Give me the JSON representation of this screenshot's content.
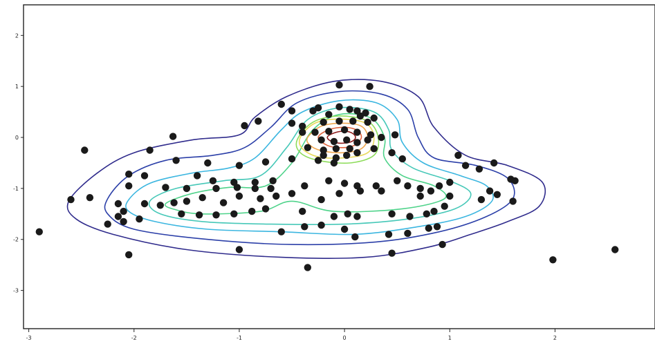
{
  "chart_data": {
    "type": "scatter",
    "title": "",
    "xlabel": "",
    "ylabel": "",
    "xlim": [
      -3.05,
      2.95
    ],
    "ylim": [
      -3.75,
      2.6
    ],
    "grid": false,
    "legend": "none",
    "x_ticks": [
      {
        "value": -3,
        "label": "-3"
      },
      {
        "value": -2,
        "label": "-2"
      },
      {
        "value": -1,
        "label": "-1"
      },
      {
        "value": 0,
        "label": "0"
      },
      {
        "value": 1,
        "label": "1"
      },
      {
        "value": 2,
        "label": "2"
      }
    ],
    "y_ticks": [
      {
        "value": 2,
        "label": "2"
      },
      {
        "value": 1,
        "label": "1"
      },
      {
        "value": 0,
        "label": "0"
      },
      {
        "value": -1,
        "label": "-1"
      },
      {
        "value": -2,
        "label": "-2"
      },
      {
        "value": -3,
        "label": "-3"
      }
    ],
    "point_color": "#1a1a1a",
    "points": [
      [
        -0.05,
        1.03
      ],
      [
        0.24,
        1.0
      ],
      [
        -0.6,
        0.65
      ],
      [
        -0.25,
        0.58
      ],
      [
        -0.5,
        0.52
      ],
      [
        -0.3,
        0.52
      ],
      [
        -0.05,
        0.6
      ],
      [
        0.05,
        0.55
      ],
      [
        0.12,
        0.52
      ],
      [
        0.2,
        0.48
      ],
      [
        0.28,
        0.38
      ],
      [
        0.15,
        0.42
      ],
      [
        -0.15,
        0.45
      ],
      [
        -0.82,
        0.32
      ],
      [
        -0.95,
        0.23
      ],
      [
        -0.5,
        0.28
      ],
      [
        -0.4,
        0.22
      ],
      [
        -0.2,
        0.3
      ],
      [
        -0.05,
        0.32
      ],
      [
        0.08,
        0.32
      ],
      [
        0.22,
        0.3
      ],
      [
        -1.63,
        0.02
      ],
      [
        -0.15,
        0.12
      ],
      [
        0.0,
        0.15
      ],
      [
        0.12,
        0.1
      ],
      [
        0.25,
        0.05
      ],
      [
        0.35,
        0.0
      ],
      [
        0.48,
        0.05
      ],
      [
        -0.4,
        0.1
      ],
      [
        -0.28,
        0.1
      ],
      [
        -0.22,
        -0.05
      ],
      [
        -0.1,
        -0.08
      ],
      [
        0.02,
        -0.05
      ],
      [
        0.12,
        -0.1
      ],
      [
        0.22,
        -0.05
      ],
      [
        0.28,
        -0.22
      ],
      [
        -0.35,
        -0.2
      ],
      [
        -0.2,
        -0.25
      ],
      [
        -0.08,
        -0.22
      ],
      [
        0.05,
        -0.22
      ],
      [
        0.45,
        -0.3
      ],
      [
        -0.2,
        -0.35
      ],
      [
        -0.08,
        -0.4
      ],
      [
        0.02,
        -0.35
      ],
      [
        0.12,
        -0.3
      ],
      [
        0.55,
        -0.42
      ],
      [
        -0.5,
        -0.42
      ],
      [
        -0.25,
        -0.45
      ],
      [
        -0.1,
        -0.5
      ],
      [
        1.08,
        -0.35
      ],
      [
        1.15,
        -0.55
      ],
      [
        -0.75,
        -0.48
      ],
      [
        -1.0,
        -0.55
      ],
      [
        -1.3,
        -0.5
      ],
      [
        -1.6,
        -0.45
      ],
      [
        -1.85,
        -0.25
      ],
      [
        -2.47,
        -0.25
      ],
      [
        1.42,
        -0.5
      ],
      [
        1.28,
        -0.62
      ],
      [
        -1.4,
        -0.75
      ],
      [
        -1.9,
        -0.75
      ],
      [
        -1.25,
        -0.85
      ],
      [
        -1.05,
        -0.88
      ],
      [
        -0.85,
        -0.88
      ],
      [
        -0.68,
        -0.85
      ],
      [
        -0.7,
        -1.0
      ],
      [
        -0.85,
        -1.0
      ],
      [
        -1.02,
        -0.98
      ],
      [
        -1.22,
        -1.0
      ],
      [
        -1.5,
        -1.0
      ],
      [
        -1.7,
        -0.98
      ],
      [
        -0.38,
        -0.95
      ],
      [
        -0.15,
        -0.85
      ],
      [
        0.0,
        -0.9
      ],
      [
        0.12,
        -0.95
      ],
      [
        0.3,
        -0.95
      ],
      [
        0.5,
        -0.85
      ],
      [
        0.6,
        -0.95
      ],
      [
        0.72,
        -1.0
      ],
      [
        0.82,
        -1.05
      ],
      [
        0.9,
        -0.95
      ],
      [
        1.0,
        -0.88
      ],
      [
        1.58,
        -0.82
      ],
      [
        1.62,
        -0.85
      ],
      [
        -2.05,
        -0.72
      ],
      [
        -2.05,
        -0.95
      ],
      [
        -1.0,
        -1.15
      ],
      [
        -0.8,
        -1.2
      ],
      [
        -0.65,
        -1.15
      ],
      [
        -1.35,
        -1.18
      ],
      [
        -1.15,
        -1.28
      ],
      [
        -1.5,
        -1.25
      ],
      [
        -1.62,
        -1.28
      ],
      [
        -1.75,
        -1.33
      ],
      [
        -2.15,
        -1.3
      ],
      [
        -2.6,
        -1.22
      ],
      [
        -2.42,
        -1.18
      ],
      [
        -1.9,
        -1.3
      ],
      [
        -0.5,
        -1.1
      ],
      [
        -0.05,
        -1.1
      ],
      [
        0.15,
        -1.05
      ],
      [
        0.35,
        -1.05
      ],
      [
        0.72,
        -1.15
      ],
      [
        1.0,
        -1.15
      ],
      [
        1.3,
        -1.22
      ],
      [
        1.38,
        -1.05
      ],
      [
        1.45,
        -1.12
      ],
      [
        1.6,
        -1.25
      ],
      [
        -0.75,
        -1.4
      ],
      [
        -0.88,
        -1.45
      ],
      [
        -1.05,
        -1.5
      ],
      [
        -1.22,
        -1.52
      ],
      [
        -1.38,
        -1.52
      ],
      [
        -1.55,
        -1.5
      ],
      [
        -1.95,
        -1.6
      ],
      [
        -2.1,
        -1.65
      ],
      [
        -2.15,
        -1.55
      ],
      [
        -2.1,
        -1.45
      ],
      [
        -0.4,
        -1.45
      ],
      [
        -0.22,
        -1.22
      ],
      [
        -0.1,
        -1.55
      ],
      [
        0.03,
        -1.5
      ],
      [
        0.12,
        -1.55
      ],
      [
        0.45,
        -1.5
      ],
      [
        0.62,
        -1.55
      ],
      [
        0.78,
        -1.5
      ],
      [
        0.85,
        -1.45
      ],
      [
        0.95,
        -1.35
      ],
      [
        -0.22,
        -1.72
      ],
      [
        -0.38,
        -1.75
      ],
      [
        0.0,
        -1.8
      ],
      [
        0.1,
        -1.95
      ],
      [
        0.42,
        -1.9
      ],
      [
        0.6,
        -1.88
      ],
      [
        0.8,
        -1.78
      ],
      [
        0.88,
        -1.75
      ],
      [
        -0.6,
        -1.85
      ],
      [
        -2.25,
        -1.7
      ],
      [
        -2.9,
        -1.85
      ],
      [
        -1.0,
        -2.2
      ],
      [
        0.93,
        -2.1
      ],
      [
        -2.05,
        -2.3
      ],
      [
        0.45,
        -2.27
      ],
      [
        -0.35,
        -2.55
      ],
      [
        1.98,
        -2.4
      ],
      [
        2.57,
        -2.2
      ]
    ],
    "contours": [
      {
        "level": 1,
        "color": "#2f2b8c",
        "path": [
          [
            -2.62,
            -1.25
          ],
          [
            -2.35,
            -0.7
          ],
          [
            -2.0,
            -0.3
          ],
          [
            -1.45,
            -0.05
          ],
          [
            -1.0,
            0.05
          ],
          [
            -0.85,
            0.4
          ],
          [
            -0.55,
            0.8
          ],
          [
            -0.1,
            1.1
          ],
          [
            0.35,
            1.1
          ],
          [
            0.7,
            0.8
          ],
          [
            0.85,
            0.2
          ],
          [
            1.15,
            -0.35
          ],
          [
            1.55,
            -0.55
          ],
          [
            1.88,
            -0.88
          ],
          [
            1.85,
            -1.35
          ],
          [
            1.55,
            -1.65
          ],
          [
            1.2,
            -1.9
          ],
          [
            0.8,
            -2.15
          ],
          [
            0.2,
            -2.35
          ],
          [
            -0.6,
            -2.35
          ],
          [
            -1.5,
            -2.2
          ],
          [
            -2.2,
            -1.9
          ],
          [
            -2.55,
            -1.6
          ]
        ]
      },
      {
        "level": 2,
        "color": "#2b3fa8",
        "path": [
          [
            -2.25,
            -1.2
          ],
          [
            -2.05,
            -0.75
          ],
          [
            -1.7,
            -0.45
          ],
          [
            -1.25,
            -0.35
          ],
          [
            -0.95,
            -0.2
          ],
          [
            -0.7,
            0.2
          ],
          [
            -0.45,
            0.68
          ],
          [
            -0.05,
            0.9
          ],
          [
            0.35,
            0.85
          ],
          [
            0.6,
            0.55
          ],
          [
            0.7,
            0.0
          ],
          [
            0.85,
            -0.4
          ],
          [
            1.25,
            -0.55
          ],
          [
            1.55,
            -0.8
          ],
          [
            1.6,
            -1.2
          ],
          [
            1.35,
            -1.55
          ],
          [
            0.9,
            -1.85
          ],
          [
            0.3,
            -2.05
          ],
          [
            -0.5,
            -2.1
          ],
          [
            -1.3,
            -2.0
          ],
          [
            -2.0,
            -1.8
          ],
          [
            -2.25,
            -1.5
          ]
        ]
      },
      {
        "level": 3,
        "color": "#3bb6e0",
        "path": [
          [
            -2.05,
            -1.22
          ],
          [
            -1.85,
            -0.9
          ],
          [
            -1.45,
            -0.7
          ],
          [
            -1.1,
            -0.6
          ],
          [
            -0.85,
            -0.4
          ],
          [
            -0.6,
            0.15
          ],
          [
            -0.4,
            0.5
          ],
          [
            -0.05,
            0.72
          ],
          [
            0.3,
            0.68
          ],
          [
            0.5,
            0.35
          ],
          [
            0.55,
            -0.1
          ],
          [
            0.75,
            -0.5
          ],
          [
            1.1,
            -0.75
          ],
          [
            1.35,
            -0.95
          ],
          [
            1.4,
            -1.25
          ],
          [
            1.15,
            -1.55
          ],
          [
            0.7,
            -1.75
          ],
          [
            0.1,
            -1.9
          ],
          [
            -0.6,
            -1.85
          ],
          [
            -1.3,
            -1.8
          ],
          [
            -1.8,
            -1.65
          ],
          [
            -2.05,
            -1.45
          ]
        ]
      },
      {
        "level": 4,
        "color": "#46c8b8",
        "path": [
          [
            -1.85,
            -1.25
          ],
          [
            -1.6,
            -1.0
          ],
          [
            -1.15,
            -0.85
          ],
          [
            -0.8,
            -0.75
          ],
          [
            -0.55,
            -0.2
          ],
          [
            -0.35,
            0.35
          ],
          [
            -0.05,
            0.58
          ],
          [
            0.28,
            0.5
          ],
          [
            0.42,
            0.15
          ],
          [
            0.45,
            -0.25
          ],
          [
            0.65,
            -0.6
          ],
          [
            1.0,
            -0.85
          ],
          [
            1.2,
            -1.1
          ],
          [
            1.05,
            -1.4
          ],
          [
            0.6,
            -1.6
          ],
          [
            0.0,
            -1.7
          ],
          [
            -0.7,
            -1.7
          ],
          [
            -1.35,
            -1.65
          ],
          [
            -1.75,
            -1.5
          ]
        ]
      },
      {
        "level": 5,
        "color": "#4ed38a",
        "path": [
          [
            -1.7,
            -1.3
          ],
          [
            -1.45,
            -1.1
          ],
          [
            -1.1,
            -0.98
          ],
          [
            -0.75,
            -0.95
          ],
          [
            -0.5,
            -0.5
          ],
          [
            -0.3,
            0.15
          ],
          [
            -0.05,
            0.45
          ],
          [
            0.25,
            0.38
          ],
          [
            0.38,
            0.0
          ],
          [
            0.38,
            -0.4
          ],
          [
            0.55,
            -0.75
          ],
          [
            0.85,
            -0.95
          ],
          [
            0.95,
            -1.2
          ],
          [
            0.55,
            -1.4
          ],
          [
            -0.1,
            -1.45
          ],
          [
            -0.5,
            -1.25
          ],
          [
            -0.8,
            -1.45
          ],
          [
            -1.35,
            -1.5
          ],
          [
            -1.6,
            -1.42
          ]
        ]
      },
      {
        "level": 6,
        "color": "#8ddc5a",
        "path": [
          [
            -0.45,
            -0.05
          ],
          [
            -0.3,
            0.3
          ],
          [
            -0.05,
            0.42
          ],
          [
            0.22,
            0.32
          ],
          [
            0.32,
            0.0
          ],
          [
            0.28,
            -0.35
          ],
          [
            0.05,
            -0.5
          ],
          [
            -0.25,
            -0.45
          ],
          [
            -0.42,
            -0.3
          ]
        ]
      },
      {
        "level": 7,
        "color": "#e8d95a",
        "path": [
          [
            -0.42,
            0.0
          ],
          [
            -0.28,
            0.28
          ],
          [
            -0.05,
            0.36
          ],
          [
            0.2,
            0.28
          ],
          [
            0.28,
            0.0
          ],
          [
            0.22,
            -0.3
          ],
          [
            0.0,
            -0.4
          ],
          [
            -0.25,
            -0.38
          ],
          [
            -0.4,
            -0.22
          ]
        ]
      },
      {
        "level": 8,
        "color": "#f0a850",
        "path": [
          [
            -0.35,
            0.0
          ],
          [
            -0.22,
            0.22
          ],
          [
            -0.02,
            0.28
          ],
          [
            0.16,
            0.22
          ],
          [
            0.22,
            0.0
          ],
          [
            0.16,
            -0.22
          ],
          [
            -0.02,
            -0.3
          ],
          [
            -0.22,
            -0.26
          ],
          [
            -0.33,
            -0.15
          ]
        ]
      },
      {
        "level": 9,
        "color": "#e0613a",
        "path": [
          [
            -0.25,
            0.0
          ],
          [
            -0.15,
            0.15
          ],
          [
            0.0,
            0.2
          ],
          [
            0.12,
            0.14
          ],
          [
            0.16,
            0.0
          ],
          [
            0.1,
            -0.15
          ],
          [
            -0.02,
            -0.2
          ],
          [
            -0.16,
            -0.16
          ]
        ]
      },
      {
        "level": 10,
        "color": "#8b1a1a",
        "path": [
          [
            -0.16,
            0.02
          ],
          [
            -0.08,
            0.1
          ],
          [
            0.02,
            0.12
          ],
          [
            0.09,
            0.06
          ],
          [
            0.1,
            -0.03
          ],
          [
            0.04,
            -0.1
          ],
          [
            -0.06,
            -0.11
          ],
          [
            -0.14,
            -0.06
          ]
        ]
      }
    ]
  }
}
